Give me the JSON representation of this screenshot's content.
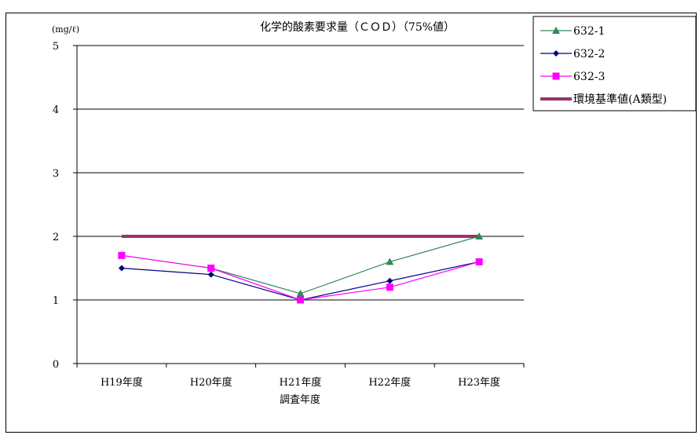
{
  "chart_data": {
    "type": "line",
    "title": "化学的酸素要求量（ＣＯＤ）（75%値）",
    "unit_label": "(mg/ℓ)",
    "xlabel": "調査年度",
    "ylabel": "",
    "categories": [
      "H19年度",
      "H20年度",
      "H21年度",
      "H22年度",
      "H23年度"
    ],
    "ylim": [
      0,
      5
    ],
    "yticks": [
      "0",
      "1",
      "2",
      "3",
      "4",
      "5"
    ],
    "grid": true,
    "legend_position": "right",
    "series": [
      {
        "name": "632-1",
        "values": [
          1.7,
          1.5,
          1.1,
          1.6,
          2.0
        ],
        "color": "#2e8b57",
        "marker": "triangle"
      },
      {
        "name": "632-2",
        "values": [
          1.5,
          1.4,
          1.0,
          1.3,
          1.6
        ],
        "color": "#000080",
        "marker": "diamond"
      },
      {
        "name": "632-3",
        "values": [
          1.7,
          1.5,
          1.0,
          1.2,
          1.6
        ],
        "color": "#ff00ff",
        "marker": "square"
      },
      {
        "name": "環境基準値(A類型)",
        "values": [
          2,
          2,
          2,
          2,
          2
        ],
        "color": "#993366",
        "marker": "none"
      }
    ]
  }
}
